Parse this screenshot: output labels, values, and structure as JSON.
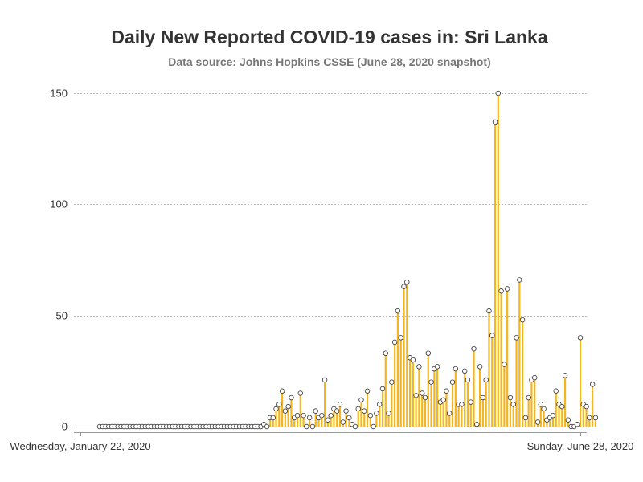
{
  "chart_data": {
    "type": "bar",
    "title": "Daily New Reported COVID-19 cases in: Sri Lanka",
    "subtitle": "Data source: Johns Hopkins CSSE (June 28, 2020 snapshot)",
    "x_start_label": "Wednesday, January 22, 2020",
    "x_end_label": "Sunday, June 28, 2020",
    "x_range": [
      "2020-01-22",
      "2020-06-28"
    ],
    "ylim": [
      0,
      150
    ],
    "yticks": [
      0,
      50,
      100,
      150
    ],
    "grid": true,
    "bar_color": "#f5b51c",
    "marker_color": "#333333",
    "marker_fill": "#ffffff",
    "series": [
      {
        "x_start": "2020-01-22",
        "values": [
          0,
          0,
          0,
          0,
          0,
          0,
          0,
          0,
          0,
          0,
          0,
          0,
          0,
          0,
          0,
          0,
          0,
          0,
          0,
          0,
          0,
          0,
          0,
          0,
          0,
          0,
          0,
          0,
          0,
          0,
          0,
          0,
          0,
          0,
          0,
          0,
          0,
          0,
          0,
          0,
          0,
          0,
          0,
          0,
          0,
          0,
          0,
          0,
          0,
          0,
          0,
          0,
          0,
          0,
          1,
          0,
          4,
          4,
          8,
          10,
          16,
          7,
          9,
          13,
          4,
          5,
          15,
          5,
          0,
          4,
          0,
          7,
          4,
          5,
          21,
          3,
          5,
          8,
          7,
          10,
          2,
          7,
          4,
          1,
          0,
          8,
          12,
          7,
          16,
          5,
          0,
          6,
          10,
          17,
          33,
          6,
          20,
          38,
          52,
          40,
          63,
          65,
          31,
          30,
          14,
          27,
          15,
          13,
          33,
          20,
          26,
          27,
          11,
          12,
          16,
          6,
          20,
          26,
          10,
          10,
          25,
          21,
          11,
          35,
          1,
          27,
          13,
          21,
          52,
          41,
          137,
          150,
          61,
          28,
          62,
          13,
          10,
          40,
          66,
          48,
          4,
          13,
          21,
          22,
          2,
          10,
          8,
          3,
          4,
          5,
          16,
          10,
          9,
          23,
          3,
          0,
          0,
          1,
          40,
          10,
          9,
          4,
          19,
          4
        ]
      }
    ]
  }
}
